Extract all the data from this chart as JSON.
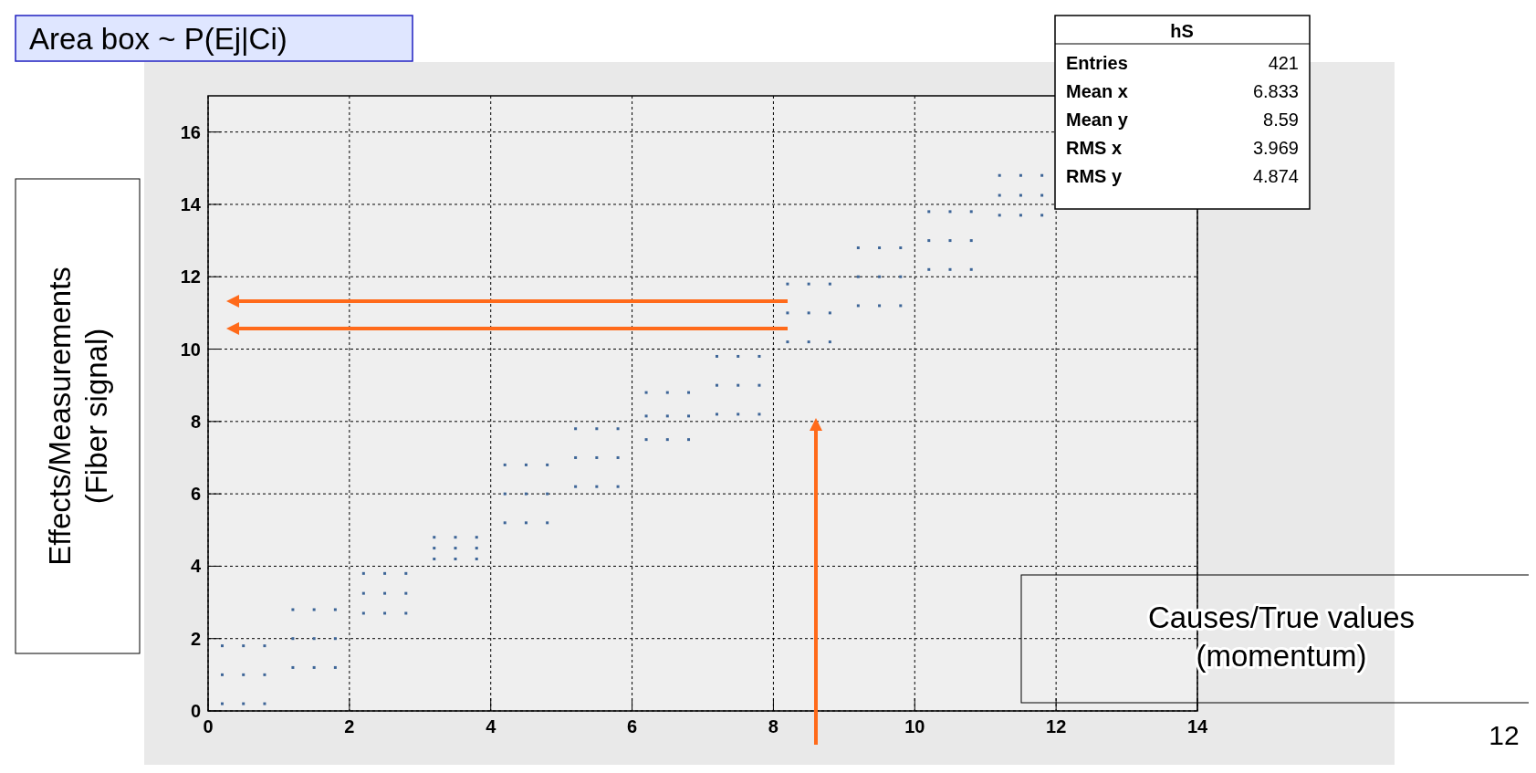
{
  "chart_data": {
    "type": "scatter",
    "xlabel": "Causes/True values\n(momentum)",
    "ylabel": "Effects/Measurements\n(Fiber signal)",
    "xlim": [
      0,
      14
    ],
    "ylim": [
      0,
      17
    ],
    "xticks": [
      0,
      2,
      4,
      6,
      8,
      10,
      12,
      14
    ],
    "yticks": [
      0,
      2,
      4,
      6,
      8,
      10,
      12,
      14,
      16
    ],
    "grid": true,
    "marker": "square",
    "x": [
      0.2,
      0.2,
      0.2,
      0.5,
      0.5,
      0.5,
      0.8,
      0.8,
      0.8,
      1.2,
      1.2,
      1.2,
      1.5,
      1.5,
      1.5,
      1.8,
      1.8,
      1.8,
      2.2,
      2.2,
      2.2,
      2.5,
      2.5,
      2.5,
      2.8,
      2.8,
      2.8,
      3.2,
      3.2,
      3.2,
      3.5,
      3.5,
      3.5,
      3.8,
      3.8,
      3.8,
      4.2,
      4.2,
      4.2,
      4.5,
      4.5,
      4.5,
      4.8,
      4.8,
      4.8,
      5.2,
      5.2,
      5.2,
      5.5,
      5.5,
      5.5,
      5.8,
      5.8,
      5.8,
      6.2,
      6.2,
      6.2,
      6.5,
      6.5,
      6.5,
      6.8,
      6.8,
      6.8,
      7.2,
      7.2,
      7.2,
      7.5,
      7.5,
      7.5,
      7.8,
      7.8,
      7.8,
      8.2,
      8.2,
      8.2,
      8.5,
      8.5,
      8.5,
      8.8,
      8.8,
      8.8,
      9.2,
      9.2,
      9.2,
      9.5,
      9.5,
      9.5,
      9.8,
      9.8,
      9.8,
      10.2,
      10.2,
      10.2,
      10.5,
      10.5,
      10.5,
      10.8,
      10.8,
      10.8,
      11.2,
      11.2,
      11.2,
      11.5,
      11.5,
      11.5,
      11.8,
      11.8,
      11.8
    ],
    "series": [
      {
        "color": "#3d6597",
        "values": [
          0.2,
          1,
          1.8,
          0.2,
          1,
          1.8,
          0.2,
          1,
          1.8,
          1.2,
          2,
          2.8,
          1.2,
          2,
          2.8,
          1.2,
          2,
          2.8,
          2.7,
          3.25,
          3.8,
          2.7,
          3.25,
          3.8,
          2.7,
          3.25,
          3.8,
          4.2,
          4.5,
          4.8,
          4.2,
          4.5,
          4.8,
          4.2,
          4.5,
          4.8,
          5.2,
          6,
          6.8,
          5.2,
          6,
          6.8,
          5.2,
          6,
          6.8,
          6.2,
          7,
          7.8,
          6.2,
          7,
          7.8,
          6.2,
          7,
          7.8,
          7.5,
          8.15,
          8.8,
          7.5,
          8.15,
          8.8,
          7.5,
          8.15,
          8.8,
          8.2,
          9,
          9.8,
          8.2,
          9,
          9.8,
          8.2,
          9,
          9.8,
          10.2,
          11,
          11.8,
          10.2,
          11,
          11.8,
          10.2,
          11,
          11.8,
          11.2,
          12,
          12.8,
          11.2,
          12,
          12.8,
          11.2,
          12,
          12.8,
          12.2,
          13,
          13.8,
          12.2,
          13,
          13.8,
          12.2,
          13,
          13.8,
          13.7,
          14.25,
          14.8,
          13.7,
          14.25,
          14.8,
          13.7,
          14.25,
          14.8
        ]
      }
    ],
    "annotations": [
      "Area box ~ P(Ej|Ci)",
      "hS",
      "Entries 421",
      "Mean x 6.833",
      "Mean y 8.59",
      "RMS x 3.969",
      "RMS y 4.874",
      "12"
    ]
  }
}
